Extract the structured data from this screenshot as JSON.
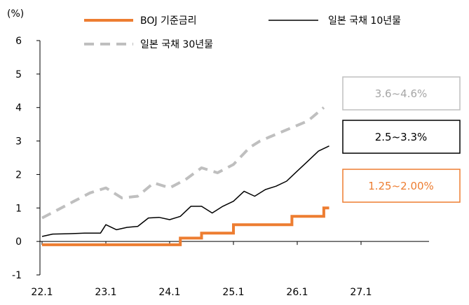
{
  "chart_data": {
    "type": "line",
    "unit_label": "(%)",
    "ylim": [
      -1,
      6
    ],
    "yticks": [
      "6",
      "5",
      "4",
      "3",
      "2",
      "1",
      "0",
      "-1"
    ],
    "xticks": [
      "22.1",
      "23.1",
      "24.1",
      "25.1",
      "26.1",
      "27.1"
    ],
    "legend": {
      "boj": "BOJ 기준금리",
      "y10": "일본 국채 10년물",
      "y30": "일본 국채 30년물"
    },
    "annotations": {
      "y30_range": "3.6~4.6%",
      "y10_range": "2.5~3.3%",
      "boj_range": "1.25~2.00%"
    },
    "colors": {
      "boj": "#ED7D31",
      "y10": "#000000",
      "y30": "#BFBFBF"
    },
    "series": [
      {
        "key": "boj",
        "name": "BOJ 기준금리",
        "style": "step",
        "points": [
          [
            "2022-01",
            -0.1
          ],
          [
            "2024-03",
            -0.1
          ],
          [
            "2024-03",
            0.1
          ],
          [
            "2024-07",
            0.1
          ],
          [
            "2024-07",
            0.25
          ],
          [
            "2025-01",
            0.25
          ],
          [
            "2025-01",
            0.5
          ],
          [
            "2025-12",
            0.5
          ],
          [
            "2025-12",
            0.75
          ],
          [
            "2026-06",
            0.75
          ],
          [
            "2026-06",
            1.0
          ],
          [
            "2026-07",
            1.0
          ]
        ]
      },
      {
        "key": "y10",
        "name": "일본 국채 10년물",
        "style": "solid",
        "points": [
          [
            "2022-01",
            0.15
          ],
          [
            "2022-03",
            0.22
          ],
          [
            "2022-06",
            0.23
          ],
          [
            "2022-09",
            0.25
          ],
          [
            "2022-12",
            0.25
          ],
          [
            "2023-01",
            0.5
          ],
          [
            "2023-03",
            0.35
          ],
          [
            "2023-05",
            0.42
          ],
          [
            "2023-07",
            0.45
          ],
          [
            "2023-09",
            0.7
          ],
          [
            "2023-11",
            0.72
          ],
          [
            "2024-01",
            0.65
          ],
          [
            "2024-03",
            0.75
          ],
          [
            "2024-05",
            1.05
          ],
          [
            "2024-07",
            1.05
          ],
          [
            "2024-09",
            0.85
          ],
          [
            "2024-11",
            1.05
          ],
          [
            "2025-01",
            1.2
          ],
          [
            "2025-03",
            1.5
          ],
          [
            "2025-05",
            1.35
          ],
          [
            "2025-07",
            1.55
          ],
          [
            "2025-09",
            1.65
          ],
          [
            "2025-11",
            1.8
          ],
          [
            "2026-01",
            2.1
          ],
          [
            "2026-03",
            2.4
          ],
          [
            "2026-05",
            2.7
          ],
          [
            "2026-07",
            2.85
          ]
        ]
      },
      {
        "key": "y30",
        "name": "일본 국채 30년물",
        "style": "dashed",
        "points": [
          [
            "2022-01",
            0.7
          ],
          [
            "2022-04",
            0.95
          ],
          [
            "2022-07",
            1.2
          ],
          [
            "2022-10",
            1.45
          ],
          [
            "2023-01",
            1.6
          ],
          [
            "2023-04",
            1.3
          ],
          [
            "2023-07",
            1.35
          ],
          [
            "2023-10",
            1.75
          ],
          [
            "2024-01",
            1.6
          ],
          [
            "2024-04",
            1.85
          ],
          [
            "2024-07",
            2.2
          ],
          [
            "2024-10",
            2.05
          ],
          [
            "2025-01",
            2.3
          ],
          [
            "2025-04",
            2.8
          ],
          [
            "2025-06",
            3.0
          ],
          [
            "2025-09",
            3.2
          ],
          [
            "2025-12",
            3.4
          ],
          [
            "2026-03",
            3.6
          ],
          [
            "2026-06",
            4.0
          ]
        ]
      }
    ]
  }
}
